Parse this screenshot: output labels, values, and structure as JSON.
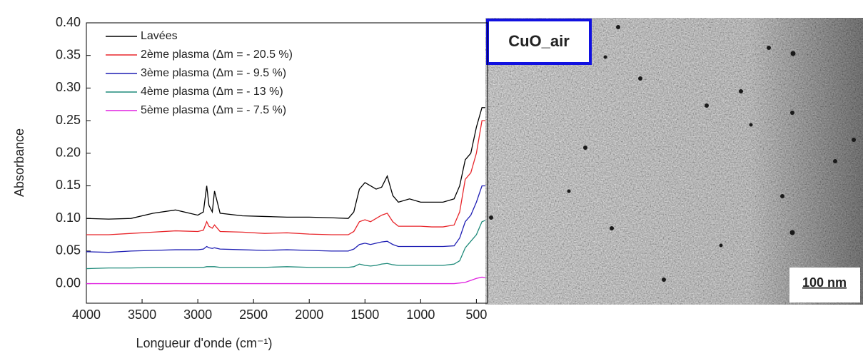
{
  "chart_data": {
    "type": "line",
    "xlabel": "Longueur d'onde (cm⁻¹)",
    "ylabel": "Absorbance",
    "x": [
      4000,
      3800,
      3600,
      3400,
      3200,
      3000,
      2950,
      2920,
      2900,
      2870,
      2850,
      2800,
      2600,
      2400,
      2200,
      2000,
      1800,
      1650,
      1600,
      1550,
      1500,
      1450,
      1400,
      1350,
      1300,
      1250,
      1200,
      1100,
      1000,
      900,
      800,
      700,
      650,
      600,
      550,
      500,
      450,
      420
    ],
    "series": [
      {
        "name": "Lavées",
        "color": "#000000",
        "values": [
          0.1,
          0.099,
          0.1,
          0.108,
          0.113,
          0.105,
          0.11,
          0.15,
          0.12,
          0.11,
          0.142,
          0.108,
          0.104,
          0.103,
          0.102,
          0.102,
          0.101,
          0.1,
          0.11,
          0.145,
          0.155,
          0.15,
          0.145,
          0.148,
          0.165,
          0.135,
          0.125,
          0.13,
          0.125,
          0.125,
          0.125,
          0.13,
          0.15,
          0.19,
          0.2,
          0.24,
          0.27,
          0.27
        ]
      },
      {
        "name": "2ème plasma (Δm = - 20.5 %)",
        "color": "#e8262b",
        "values": [
          0.075,
          0.075,
          0.077,
          0.079,
          0.081,
          0.08,
          0.082,
          0.095,
          0.088,
          0.085,
          0.09,
          0.08,
          0.079,
          0.077,
          0.078,
          0.076,
          0.075,
          0.075,
          0.08,
          0.095,
          0.098,
          0.095,
          0.1,
          0.105,
          0.108,
          0.095,
          0.088,
          0.088,
          0.088,
          0.087,
          0.087,
          0.09,
          0.11,
          0.16,
          0.17,
          0.2,
          0.25,
          0.25
        ]
      },
      {
        "name": "3ème plasma (Δm = - 9.5 %)",
        "color": "#1f1fb4",
        "values": [
          0.049,
          0.048,
          0.05,
          0.051,
          0.052,
          0.052,
          0.053,
          0.057,
          0.055,
          0.054,
          0.055,
          0.053,
          0.052,
          0.051,
          0.052,
          0.051,
          0.05,
          0.05,
          0.053,
          0.06,
          0.062,
          0.06,
          0.062,
          0.064,
          0.065,
          0.06,
          0.057,
          0.057,
          0.057,
          0.057,
          0.057,
          0.058,
          0.07,
          0.095,
          0.105,
          0.125,
          0.15,
          0.15
        ]
      },
      {
        "name": "4ème plasma (Δm = - 13 %)",
        "color": "#1e8a7a",
        "values": [
          0.023,
          0.024,
          0.024,
          0.025,
          0.025,
          0.025,
          0.025,
          0.026,
          0.026,
          0.026,
          0.026,
          0.025,
          0.025,
          0.025,
          0.026,
          0.025,
          0.025,
          0.025,
          0.026,
          0.03,
          0.028,
          0.027,
          0.028,
          0.03,
          0.031,
          0.029,
          0.028,
          0.028,
          0.028,
          0.028,
          0.028,
          0.03,
          0.035,
          0.055,
          0.065,
          0.075,
          0.095,
          0.097
        ]
      },
      {
        "name": "5ème plasma (Δm = - 7.5 %)",
        "color": "#e020e0",
        "values": [
          0.0,
          0.0,
          0.0,
          0.0,
          0.0,
          0.0,
          0.0,
          0.0,
          0.0,
          0.0,
          0.0,
          0.0,
          0.0,
          0.0,
          0.0,
          0.0,
          0.0,
          0.0,
          0.0,
          0.0,
          0.0,
          0.0,
          0.0,
          0.0,
          0.0,
          0.0,
          0.0,
          0.0,
          0.0,
          0.0,
          0.0,
          0.0,
          0.001,
          0.002,
          0.005,
          0.008,
          0.01,
          0.009
        ]
      }
    ],
    "xlim": [
      4000,
      400
    ],
    "xticks": [
      4000,
      3500,
      3000,
      2500,
      2000,
      1500,
      1000,
      500
    ],
    "ylim": [
      -0.03,
      0.4
    ],
    "yticks": [
      {
        "value": 0,
        "label": "0.00"
      },
      {
        "value": 0.05,
        "label": "0.05"
      },
      {
        "value": 0.1,
        "label": "0.10"
      },
      {
        "value": 0.15,
        "label": "0.15"
      },
      {
        "value": 0.2,
        "label": "0.20"
      },
      {
        "value": 0.25,
        "label": "0.25"
      },
      {
        "value": 0.3,
        "label": "0.30"
      },
      {
        "value": 0.35,
        "label": "0.35"
      },
      {
        "value": 0.4,
        "label": "0.40"
      }
    ],
    "grid": false,
    "legend": "upper left"
  },
  "image": {
    "label": "CuO_air",
    "scale_bar": "100 nm"
  }
}
